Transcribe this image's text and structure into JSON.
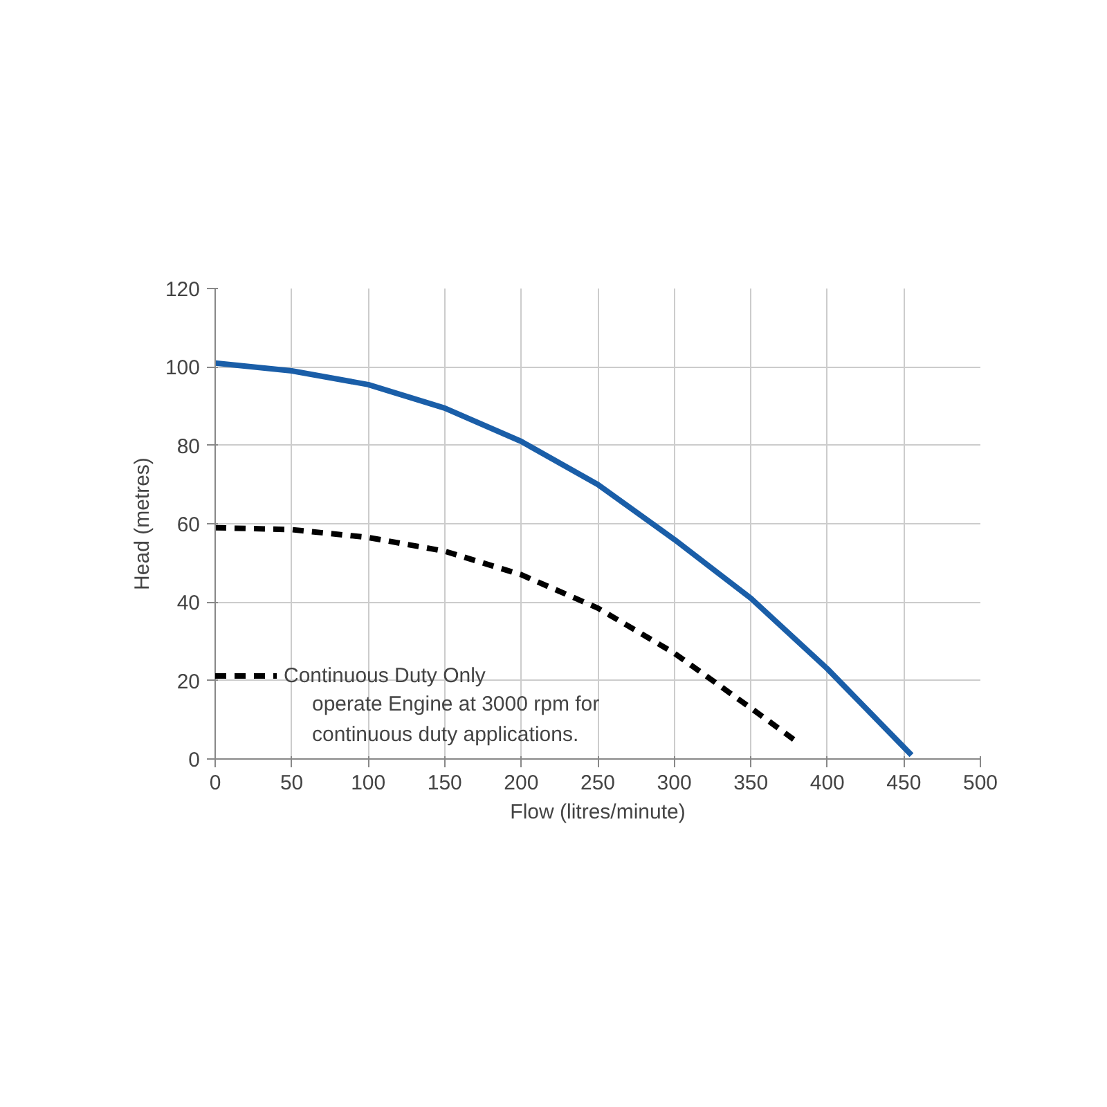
{
  "chart_data": {
    "type": "line",
    "xlabel": "Flow (litres/minute)",
    "ylabel": "Head (metres)",
    "xlim": [
      0,
      500
    ],
    "ylim": [
      0,
      120
    ],
    "xticks": [
      0,
      50,
      100,
      150,
      200,
      250,
      300,
      350,
      400,
      450,
      500
    ],
    "yticks": [
      0,
      20,
      40,
      60,
      80,
      100,
      120
    ],
    "grid": true,
    "legend": "bottom left",
    "marker": "none",
    "series": [
      {
        "color": "#1a5ea8",
        "line_style": "solid",
        "x": [
          0,
          50,
          100,
          150,
          200,
          250,
          300,
          350,
          400,
          455
        ],
        "values": [
          101,
          99,
          95.5,
          89.5,
          81,
          70,
          56,
          41,
          23,
          1
        ]
      },
      {
        "name": "Continuous Duty Only",
        "color": "#000000",
        "line_style": "dashed",
        "x": [
          0,
          50,
          100,
          150,
          200,
          250,
          300,
          350,
          378
        ],
        "values": [
          59,
          58.5,
          56.5,
          53,
          47,
          38.5,
          27,
          13,
          5
        ]
      }
    ],
    "annotations": [
      "operate Engine at 3000 rpm for\ncontinuous duty applications."
    ]
  }
}
